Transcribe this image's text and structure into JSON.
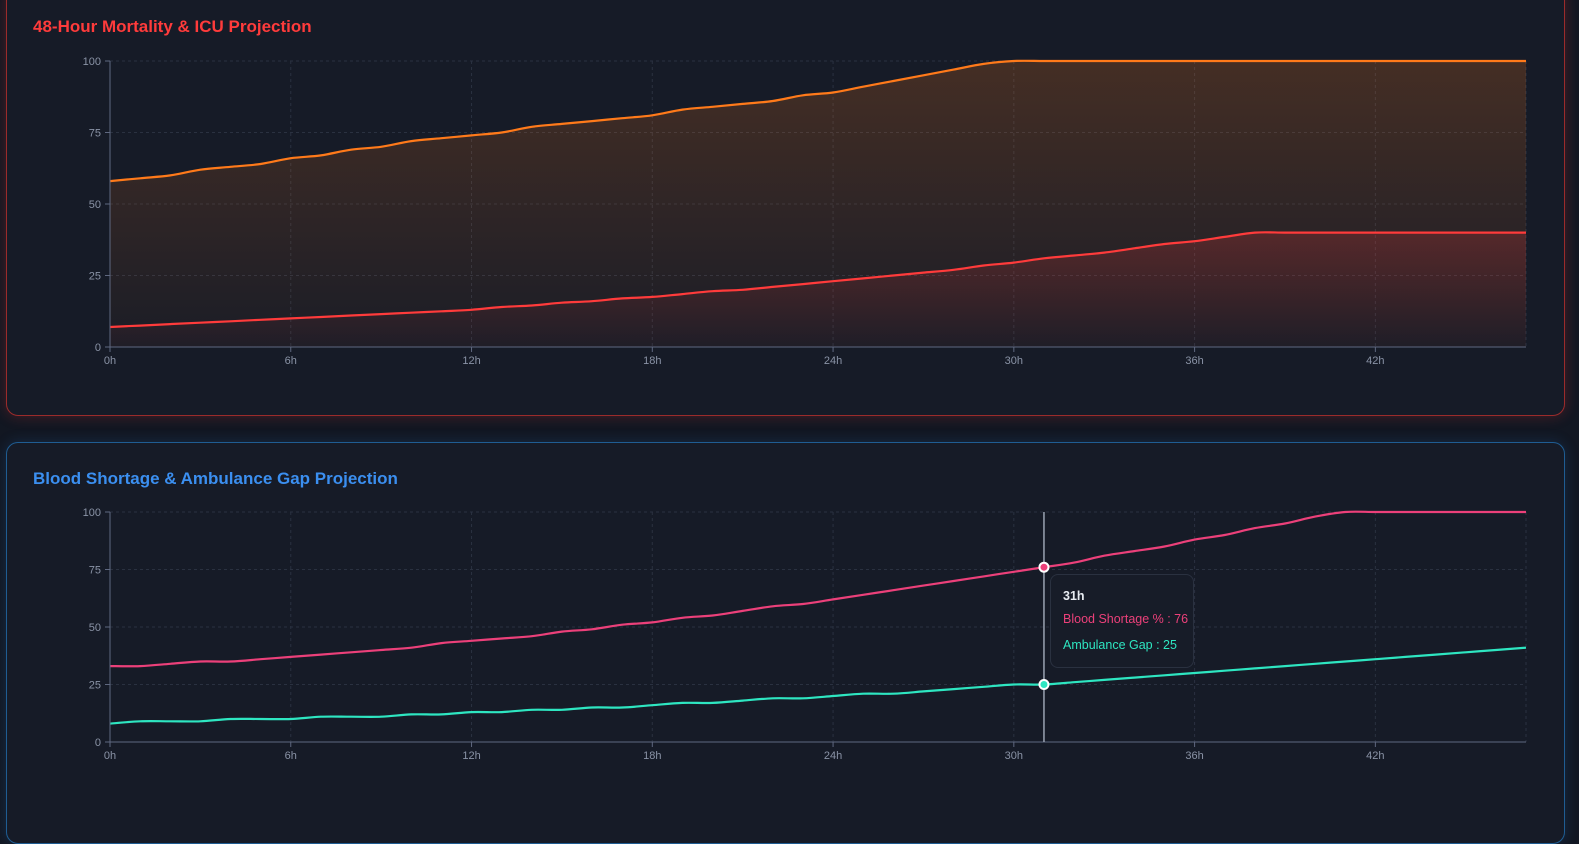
{
  "colors": {
    "mortality": "#ff7a1a",
    "icu": "#ff3b3b",
    "blood": "#ec407a",
    "ambulance": "#2ee6c1",
    "title_red": "#ff3b3b",
    "title_blue": "#3b8ff0",
    "grid": "#2a3140",
    "axis": "#5f6880"
  },
  "panels": {
    "mortality": {
      "title": "48-Hour Mortality & ICU Projection"
    },
    "blood": {
      "title": "Blood Shortage & Ambulance Gap Projection"
    }
  },
  "tooltip": {
    "title": "31h",
    "row1_text": "Blood Shortage % : 76",
    "row2_text": "Ambulance Gap : 25"
  },
  "chart_data": [
    {
      "type": "area",
      "title": "48-Hour Mortality & ICU Projection",
      "xlabel": "",
      "ylabel": "",
      "xlim": [
        0,
        47
      ],
      "ylim": [
        0,
        100
      ],
      "x_ticks": [
        0,
        6,
        12,
        18,
        24,
        30,
        36,
        42
      ],
      "x_tick_labels": [
        "0h",
        "6h",
        "12h",
        "18h",
        "24h",
        "30h",
        "36h",
        "42h"
      ],
      "y_ticks": [
        0,
        25,
        50,
        75,
        100
      ],
      "y_tick_labels": [
        "0",
        "25",
        "50",
        "75",
        "100"
      ],
      "grid": true,
      "x": [
        0,
        1,
        2,
        3,
        4,
        5,
        6,
        7,
        8,
        9,
        10,
        11,
        12,
        13,
        14,
        15,
        16,
        17,
        18,
        19,
        20,
        21,
        22,
        23,
        24,
        25,
        26,
        27,
        28,
        29,
        30,
        31,
        32,
        33,
        34,
        35,
        36,
        37,
        38,
        39,
        40,
        41,
        42,
        43,
        44,
        45,
        46,
        47
      ],
      "series": [
        {
          "color_key": "mortality",
          "values": [
            58,
            59,
            60,
            62,
            63,
            64,
            66,
            67,
            69,
            70,
            72,
            73,
            74,
            75,
            77,
            78,
            79,
            80,
            81,
            83,
            84,
            85,
            86,
            88,
            89,
            91,
            93,
            95,
            97,
            99,
            100,
            100,
            100,
            100,
            100,
            100,
            100,
            100,
            100,
            100,
            100,
            100,
            100,
            100,
            100,
            100,
            100,
            100
          ]
        },
        {
          "color_key": "icu",
          "values": [
            7,
            7.5,
            8,
            8.5,
            9,
            9.5,
            10,
            10.5,
            11,
            11.5,
            12,
            12.5,
            13,
            14,
            14.5,
            15.5,
            16,
            17,
            17.5,
            18.5,
            19.5,
            20,
            21,
            22,
            23,
            24,
            25,
            26,
            27,
            28.5,
            29.5,
            31,
            32,
            33,
            34.5,
            36,
            37,
            38.5,
            40,
            40,
            40,
            40,
            40,
            40,
            40,
            40,
            40,
            40
          ]
        }
      ]
    },
    {
      "type": "line",
      "title": "Blood Shortage & Ambulance Gap Projection",
      "xlabel": "",
      "ylabel": "",
      "xlim": [
        0,
        47
      ],
      "ylim": [
        0,
        100
      ],
      "x_ticks": [
        0,
        6,
        12,
        18,
        24,
        30,
        36,
        42
      ],
      "x_tick_labels": [
        "0h",
        "6h",
        "12h",
        "18h",
        "24h",
        "30h",
        "36h",
        "42h"
      ],
      "y_ticks": [
        0,
        25,
        50,
        75,
        100
      ],
      "y_tick_labels": [
        "0",
        "25",
        "50",
        "75",
        "100"
      ],
      "grid": true,
      "x": [
        0,
        1,
        2,
        3,
        4,
        5,
        6,
        7,
        8,
        9,
        10,
        11,
        12,
        13,
        14,
        15,
        16,
        17,
        18,
        19,
        20,
        21,
        22,
        23,
        24,
        25,
        26,
        27,
        28,
        29,
        30,
        31,
        32,
        33,
        34,
        35,
        36,
        37,
        38,
        39,
        40,
        41,
        42,
        43,
        44,
        45,
        46,
        47
      ],
      "series": [
        {
          "name": "Blood Shortage %",
          "color_key": "blood",
          "values": [
            33,
            33,
            34,
            35,
            35,
            36,
            37,
            38,
            39,
            40,
            41,
            43,
            44,
            45,
            46,
            48,
            49,
            51,
            52,
            54,
            55,
            57,
            59,
            60,
            62,
            64,
            66,
            68,
            70,
            72,
            74,
            76,
            78,
            81,
            83,
            85,
            88,
            90,
            93,
            95,
            98,
            100,
            100,
            100,
            100,
            100,
            100,
            100
          ]
        },
        {
          "name": "Ambulance Gap",
          "color_key": "ambulance",
          "values": [
            8,
            9,
            9,
            9,
            10,
            10,
            10,
            11,
            11,
            11,
            12,
            12,
            13,
            13,
            14,
            14,
            15,
            15,
            16,
            17,
            17,
            18,
            19,
            19,
            20,
            21,
            21,
            22,
            23,
            24,
            25,
            25,
            26,
            27,
            28,
            29,
            30,
            31,
            32,
            33,
            34,
            35,
            36,
            37,
            38,
            39,
            40,
            41
          ]
        }
      ],
      "hover": {
        "x": 31,
        "x_label": "31h",
        "values": [
          76,
          25
        ]
      }
    }
  ]
}
